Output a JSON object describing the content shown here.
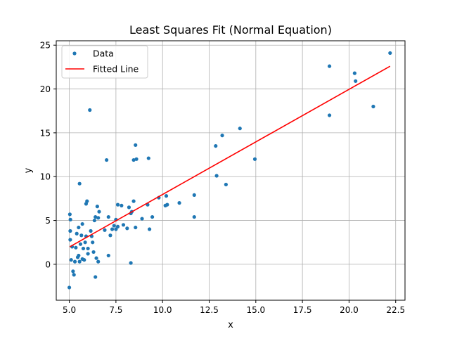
{
  "chart_data": {
    "type": "scatter",
    "title": "Least Squares Fit (Normal Equation)",
    "xlabel": "x",
    "ylabel": "y",
    "xlim": [
      4.3,
      23.0
    ],
    "ylim": [
      -4.1,
      25.5
    ],
    "grid": true,
    "legend_placement": "top-left",
    "x_ticks": [
      5.0,
      7.5,
      10.0,
      12.5,
      15.0,
      17.5,
      20.0,
      22.5
    ],
    "x_tick_labels": [
      "5.0",
      "7.5",
      "10.0",
      "12.5",
      "15.0",
      "17.5",
      "20.0",
      "22.5"
    ],
    "y_ticks": [
      0,
      5,
      10,
      15,
      20,
      25
    ],
    "y_tick_labels": [
      "0",
      "5",
      "10",
      "15",
      "20",
      "25"
    ],
    "series": [
      {
        "name": "Data",
        "kind": "scatter",
        "color": "#1f77b4",
        "points": [
          [
            5.03,
            5.7
          ],
          [
            5.05,
            3.8
          ],
          [
            5.06,
            5.1
          ],
          [
            5.05,
            2.8
          ],
          [
            5.0,
            -2.65
          ],
          [
            5.1,
            0.5
          ],
          [
            5.15,
            2.0
          ],
          [
            5.2,
            -0.8
          ],
          [
            5.25,
            -1.2
          ],
          [
            5.3,
            0.3
          ],
          [
            5.35,
            1.9
          ],
          [
            5.4,
            3.5
          ],
          [
            5.45,
            0.8
          ],
          [
            5.5,
            1.0
          ],
          [
            5.5,
            4.2
          ],
          [
            5.55,
            9.2
          ],
          [
            5.55,
            0.3
          ],
          [
            5.6,
            2.3
          ],
          [
            5.65,
            3.3
          ],
          [
            5.7,
            4.6
          ],
          [
            5.7,
            0.6
          ],
          [
            5.75,
            1.8
          ],
          [
            5.8,
            0.5
          ],
          [
            5.85,
            2.5
          ],
          [
            5.9,
            6.9
          ],
          [
            5.9,
            3.2
          ],
          [
            5.95,
            7.2
          ],
          [
            6.0,
            1.8
          ],
          [
            6.0,
            1.2
          ],
          [
            6.1,
            17.6
          ],
          [
            6.15,
            3.8
          ],
          [
            6.2,
            3.2
          ],
          [
            6.25,
            2.5
          ],
          [
            6.3,
            1.4
          ],
          [
            6.35,
            5.0
          ],
          [
            6.4,
            -1.45
          ],
          [
            6.4,
            5.4
          ],
          [
            6.45,
            0.7
          ],
          [
            6.5,
            6.6
          ],
          [
            6.55,
            0.3
          ],
          [
            6.55,
            5.3
          ],
          [
            6.6,
            6.0
          ],
          [
            6.9,
            3.9
          ],
          [
            7.0,
            11.9
          ],
          [
            7.1,
            5.4
          ],
          [
            7.1,
            1.0
          ],
          [
            7.2,
            3.3
          ],
          [
            7.3,
            4.0
          ],
          [
            7.4,
            4.4
          ],
          [
            7.5,
            5.1
          ],
          [
            7.5,
            4.0
          ],
          [
            7.6,
            6.8
          ],
          [
            7.6,
            4.3
          ],
          [
            7.8,
            6.7
          ],
          [
            7.9,
            4.5
          ],
          [
            8.1,
            4.1
          ],
          [
            8.2,
            6.5
          ],
          [
            8.3,
            5.8
          ],
          [
            8.35,
            6.0
          ],
          [
            8.3,
            0.15
          ],
          [
            8.45,
            7.2
          ],
          [
            8.45,
            11.9
          ],
          [
            8.55,
            13.6
          ],
          [
            8.6,
            12.0
          ],
          [
            8.55,
            4.2
          ],
          [
            8.9,
            5.2
          ],
          [
            9.2,
            6.8
          ],
          [
            9.25,
            12.1
          ],
          [
            9.3,
            4.0
          ],
          [
            9.45,
            5.4
          ],
          [
            9.8,
            7.6
          ],
          [
            10.15,
            6.7
          ],
          [
            10.25,
            6.8
          ],
          [
            10.2,
            7.8
          ],
          [
            10.9,
            7.0
          ],
          [
            11.7,
            5.4
          ],
          [
            11.7,
            7.9
          ],
          [
            12.85,
            13.5
          ],
          [
            12.9,
            10.1
          ],
          [
            13.2,
            14.7
          ],
          [
            13.4,
            9.1
          ],
          [
            14.15,
            15.5
          ],
          [
            14.95,
            12.0
          ],
          [
            18.95,
            22.6
          ],
          [
            18.95,
            17.0
          ],
          [
            20.3,
            21.8
          ],
          [
            20.35,
            20.9
          ],
          [
            21.3,
            18.0
          ],
          [
            22.2,
            24.1
          ]
        ]
      },
      {
        "name": "Fitted Line",
        "kind": "line",
        "color": "#ff0000",
        "points": [
          [
            5.03,
            2.0
          ],
          [
            22.2,
            22.6
          ]
        ]
      }
    ]
  }
}
